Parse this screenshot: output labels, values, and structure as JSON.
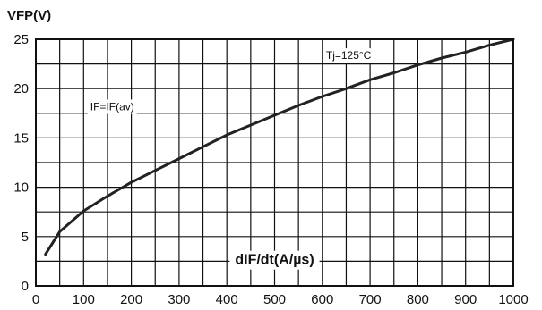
{
  "chart_data": {
    "type": "line",
    "ylabel": "VFP(V)",
    "xlabel": "dIF/dt(A/µs)",
    "xlim": [
      0,
      1000
    ],
    "ylim": [
      0,
      25
    ],
    "x_ticks": [
      "0",
      "100",
      "200",
      "300",
      "400",
      "500",
      "600",
      "700",
      "800",
      "900",
      "1000"
    ],
    "y_ticks": [
      "0",
      "5",
      "10",
      "15",
      "20",
      "25"
    ],
    "grid": true,
    "series": [
      {
        "x": [
          20,
          50,
          100,
          150,
          200,
          250,
          300,
          350,
          400,
          450,
          500,
          550,
          600,
          650,
          700,
          750,
          800,
          850,
          900,
          950,
          1000
        ],
        "y": [
          3.2,
          5.5,
          7.6,
          9.1,
          10.5,
          11.7,
          12.9,
          14.1,
          15.3,
          16.3,
          17.3,
          18.3,
          19.2,
          20.0,
          20.9,
          21.6,
          22.4,
          23.1,
          23.7,
          24.4,
          25.0
        ]
      }
    ],
    "annotations": [
      {
        "text": "IF=IF(av)",
        "x": 160,
        "y": 17.8
      },
      {
        "text": "Tj=125°C",
        "x": 655,
        "y": 23.0
      }
    ]
  }
}
